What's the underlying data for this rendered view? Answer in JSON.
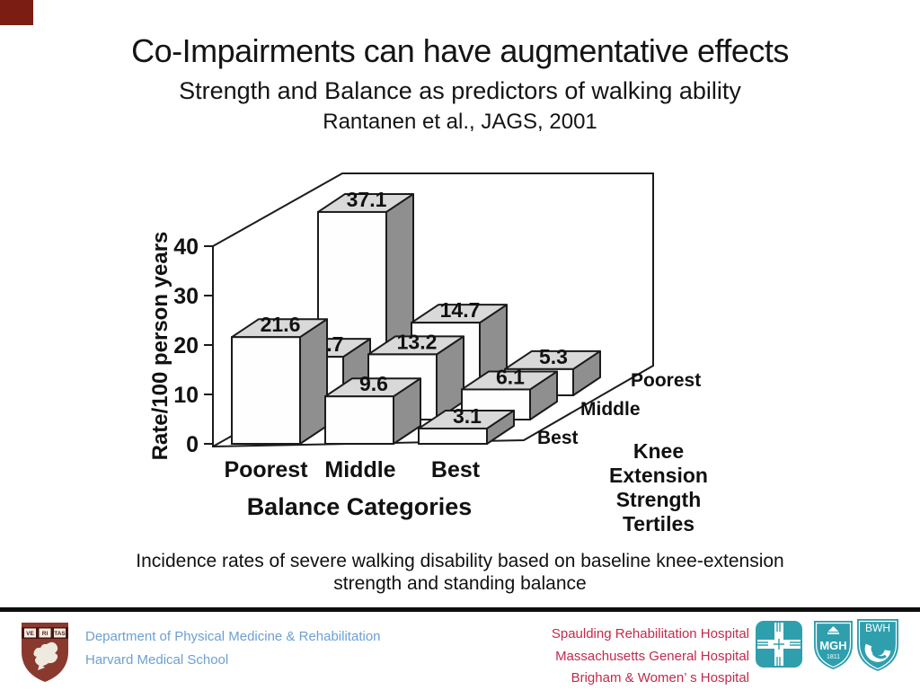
{
  "slide": {
    "title": "Co-Impairments can have augmentative effects",
    "subtitle": "Strength and Balance as predictors of walking ability",
    "citation": "Rantanen et al., JAGS, 2001",
    "caption_line1": "Incidence rates of severe walking disability based on baseline knee-extension",
    "caption_line2": "strength and standing balance"
  },
  "chart_data": {
    "type": "bar",
    "variant": "3d-column",
    "ylabel": "Rate/100 person years",
    "xlabel": "Balance Categories",
    "zlabel": "Knee Extension Strength Tertiles",
    "categories": [
      "Poorest",
      "Middle",
      "Best"
    ],
    "series": [
      {
        "name": "Best",
        "values": [
          21.6,
          9.6,
          3.1
        ]
      },
      {
        "name": "Middle",
        "values": [
          12.7,
          13.2,
          6.1
        ]
      },
      {
        "name": "Poorest",
        "values": [
          37.1,
          14.7,
          5.3
        ]
      }
    ],
    "series_order_note": "front row to back row",
    "ylim": [
      0,
      40
    ],
    "yticks": [
      0,
      10,
      20,
      30,
      40
    ],
    "grid": "off",
    "bar_front_color": "#fefefe",
    "bar_top_color": "#d9d9d9",
    "bar_side_color": "#8f8f8f",
    "line_color": "#1b1b1b"
  },
  "footer": {
    "left": {
      "line1": "Department of Physical Medicine & Rehabilitation",
      "line2": "Harvard Medical School",
      "text_color": "#6ca0d2",
      "crest_motto": {
        "m1": "VE",
        "m2": "RI",
        "m3": "TAS"
      },
      "crest_color": "#8a392e"
    },
    "right": {
      "line1": "Spaulding Rehabilitation Hospital",
      "line2": "Massachusetts General Hospital",
      "line3": "Brigham & Women’ s Hospital",
      "text_color": "#c22a4d",
      "logo_color": "#2f9fae",
      "mgh_label": "MGH",
      "mgh_year": "1811",
      "bwh_label": "BWH"
    }
  }
}
